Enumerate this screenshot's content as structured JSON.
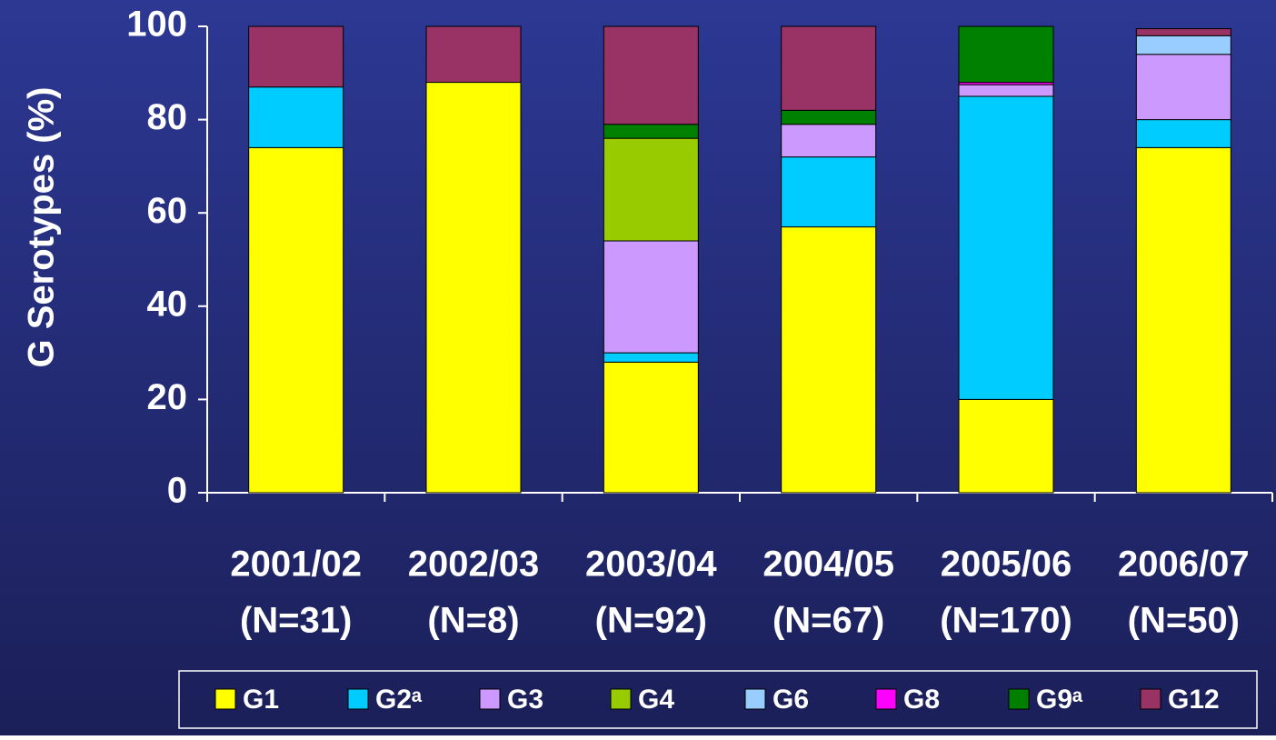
{
  "chart_data": {
    "type": "stacked_bar",
    "y_label": "G Serotypes (%)",
    "categories": [
      [
        "2001/02",
        "(N=31)"
      ],
      [
        "2002/03",
        "(N=8)"
      ],
      [
        "2003/04",
        "(N=92)"
      ],
      [
        "2004/05",
        "(N=67)"
      ],
      [
        "2005/06",
        "(N=170)"
      ],
      [
        "2006/07",
        "(N=50)"
      ]
    ],
    "series": [
      {
        "name": "G1",
        "color": "#ffff00",
        "values": [
          74,
          88,
          28,
          57,
          20,
          74
        ]
      },
      {
        "name": "G2ᵃ",
        "color": "#00ccff",
        "values": [
          13,
          0,
          2,
          15,
          65,
          6
        ]
      },
      {
        "name": "G3",
        "color": "#cc99ff",
        "values": [
          0,
          0,
          24,
          7,
          2.5,
          14
        ]
      },
      {
        "name": "G4",
        "color": "#99cc00",
        "values": [
          0,
          0,
          22,
          0,
          0,
          0
        ]
      },
      {
        "name": "G6",
        "color": "#99ccff",
        "values": [
          0,
          0,
          0,
          0,
          0,
          4
        ]
      },
      {
        "name": "G8",
        "color": "#ff00ff",
        "values": [
          0,
          0,
          0,
          0,
          0.5,
          0
        ]
      },
      {
        "name": "G9ᵃ",
        "color": "#008000",
        "values": [
          0,
          0,
          3,
          3,
          12,
          0
        ]
      },
      {
        "name": "G12",
        "color": "#993366",
        "values": [
          13,
          12,
          21,
          18,
          0,
          1.5
        ]
      }
    ],
    "ylim": [
      0,
      100
    ],
    "yticks": [
      0,
      20,
      40,
      60,
      80,
      100
    ],
    "grid": false,
    "legend": "bottom"
  }
}
